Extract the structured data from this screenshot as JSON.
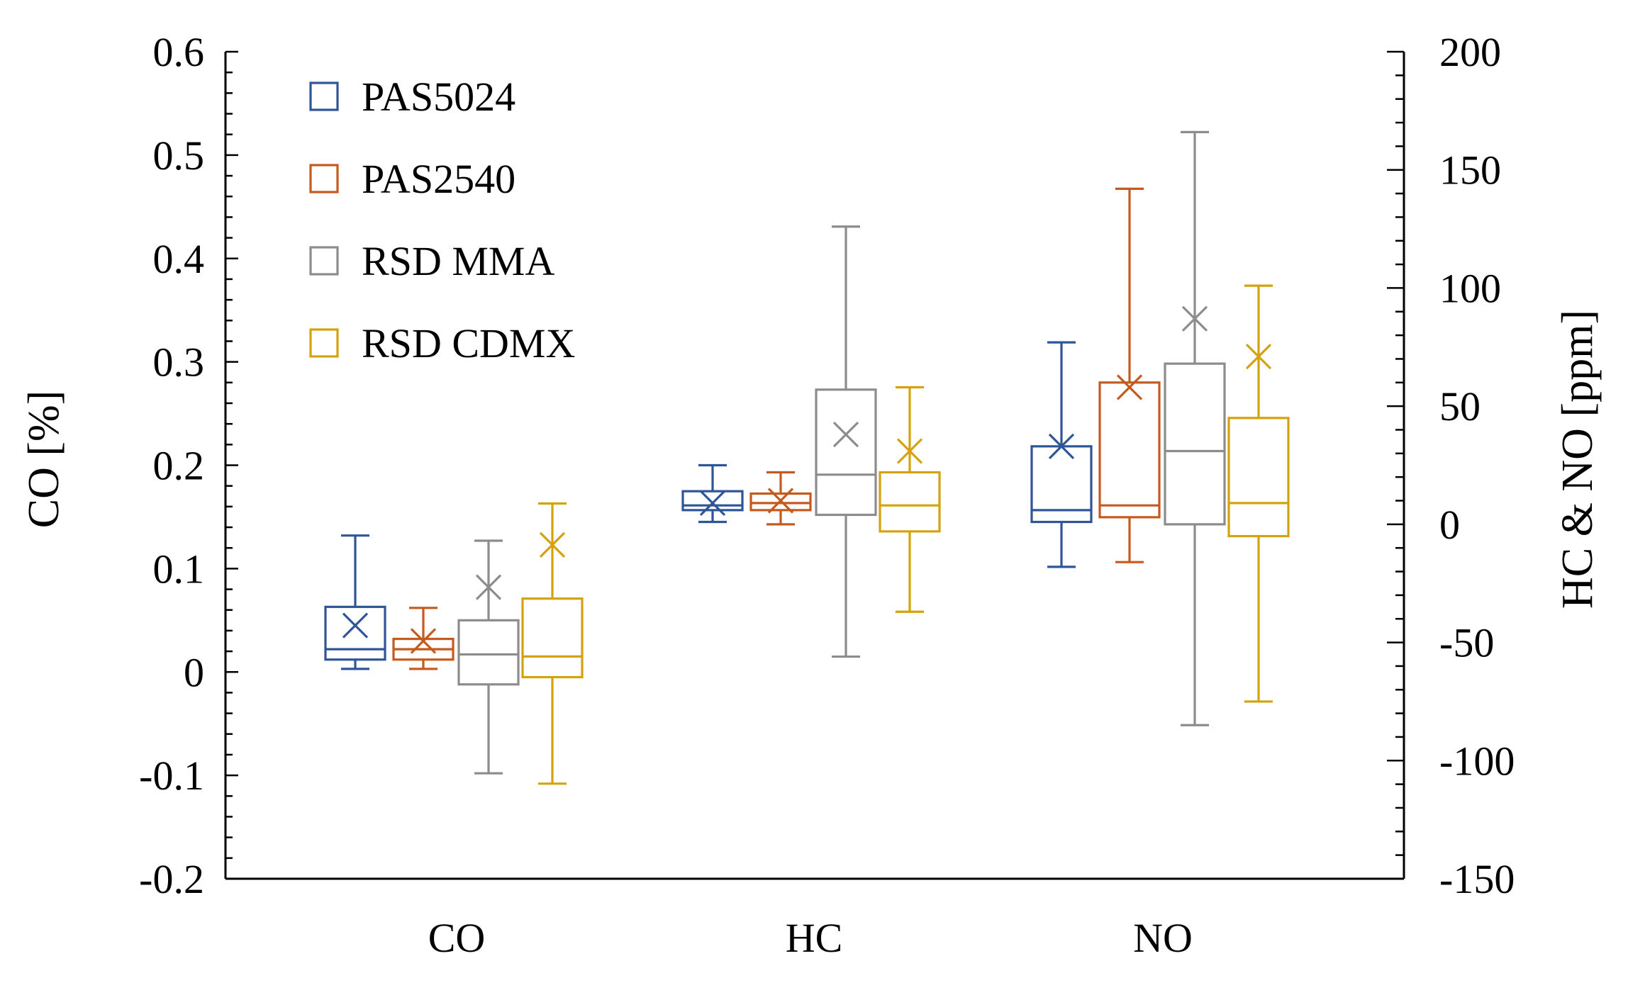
{
  "chart_data": {
    "type": "box",
    "categories": [
      "CO",
      "HC",
      "NO"
    ],
    "ylabel_left": "CO [%]",
    "ylabel_right": "HC & NO [ppm]",
    "ylim_left": [
      -0.2,
      0.6
    ],
    "ylim_right": [
      -150,
      200
    ],
    "yticks_left": [
      "-0.2",
      "-0.1",
      "0",
      "0.1",
      "0.2",
      "0.3",
      "0.4",
      "0.5",
      "0.6"
    ],
    "yticks_right": [
      "-150",
      "-100",
      "-50",
      "0",
      "50",
      "100",
      "150",
      "200"
    ],
    "legend_position": "top-left",
    "grid": false,
    "series": [
      {
        "name": "PAS5024",
        "color": "#2e5597",
        "boxes": [
          {
            "category": "CO",
            "axis": "left",
            "min": 0.003,
            "q1": 0.012,
            "median": 0.022,
            "q3": 0.063,
            "max": 0.132,
            "mean": 0.045
          },
          {
            "category": "HC",
            "axis": "right",
            "min": 1,
            "q1": 6,
            "median": 8,
            "q3": 14,
            "max": 25,
            "mean": 9
          },
          {
            "category": "NO",
            "axis": "right",
            "min": -18,
            "q1": 1,
            "median": 6,
            "q3": 33,
            "max": 77,
            "mean": 33
          }
        ]
      },
      {
        "name": "PAS2540",
        "color": "#c55a1e",
        "boxes": [
          {
            "category": "CO",
            "axis": "left",
            "min": 0.003,
            "q1": 0.012,
            "median": 0.022,
            "q3": 0.032,
            "max": 0.062,
            "mean": 0.03
          },
          {
            "category": "HC",
            "axis": "right",
            "min": 0,
            "q1": 6,
            "median": 9,
            "q3": 13,
            "max": 22,
            "mean": 10
          },
          {
            "category": "NO",
            "axis": "right",
            "min": -16,
            "q1": 3,
            "median": 8,
            "q3": 60,
            "max": 142,
            "mean": 58
          }
        ]
      },
      {
        "name": "RSD MMA",
        "color": "#8c8c8c",
        "boxes": [
          {
            "category": "CO",
            "axis": "left",
            "min": -0.098,
            "q1": -0.012,
            "median": 0.017,
            "q3": 0.05,
            "max": 0.127,
            "mean": 0.082
          },
          {
            "category": "HC",
            "axis": "right",
            "min": -56,
            "q1": 4,
            "median": 21,
            "q3": 57,
            "max": 126,
            "mean": 38
          },
          {
            "category": "NO",
            "axis": "right",
            "min": -85,
            "q1": 0,
            "median": 31,
            "q3": 68,
            "max": 166,
            "mean": 87
          }
        ]
      },
      {
        "name": "RSD CDMX",
        "color": "#d4a20c",
        "boxes": [
          {
            "category": "CO",
            "axis": "left",
            "min": -0.108,
            "q1": -0.005,
            "median": 0.015,
            "q3": 0.071,
            "max": 0.163,
            "mean": 0.123
          },
          {
            "category": "HC",
            "axis": "right",
            "min": -37,
            "q1": -3,
            "median": 8,
            "q3": 22,
            "max": 58,
            "mean": 31
          },
          {
            "category": "NO",
            "axis": "right",
            "min": -75,
            "q1": -5,
            "median": 9,
            "q3": 45,
            "max": 101,
            "mean": 71
          }
        ]
      }
    ]
  }
}
